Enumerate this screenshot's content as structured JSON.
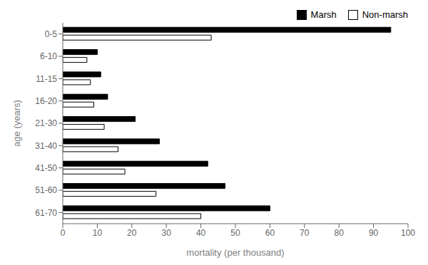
{
  "chart_data": {
    "type": "bar",
    "orientation": "horizontal",
    "categories": [
      "0-5",
      "6-10",
      "11-15",
      "16-20",
      "21-30",
      "31-40",
      "41-50",
      "51-60",
      "61-70"
    ],
    "series": [
      {
        "name": "Marsh",
        "color": "#000000",
        "values": [
          95,
          10,
          11,
          13,
          21,
          28,
          42,
          47,
          60
        ]
      },
      {
        "name": "Non-marsh",
        "color": "#ffffff",
        "values": [
          43,
          7,
          8,
          9,
          12,
          16,
          18,
          27,
          40
        ]
      }
    ],
    "xlabel": "mortality (per thousand)",
    "ylabel": "age (years)",
    "xlim": [
      0,
      100
    ],
    "xticks": [
      0,
      10,
      20,
      30,
      40,
      50,
      60,
      70,
      80,
      90,
      100
    ],
    "grid": false,
    "legend": "upper right"
  }
}
